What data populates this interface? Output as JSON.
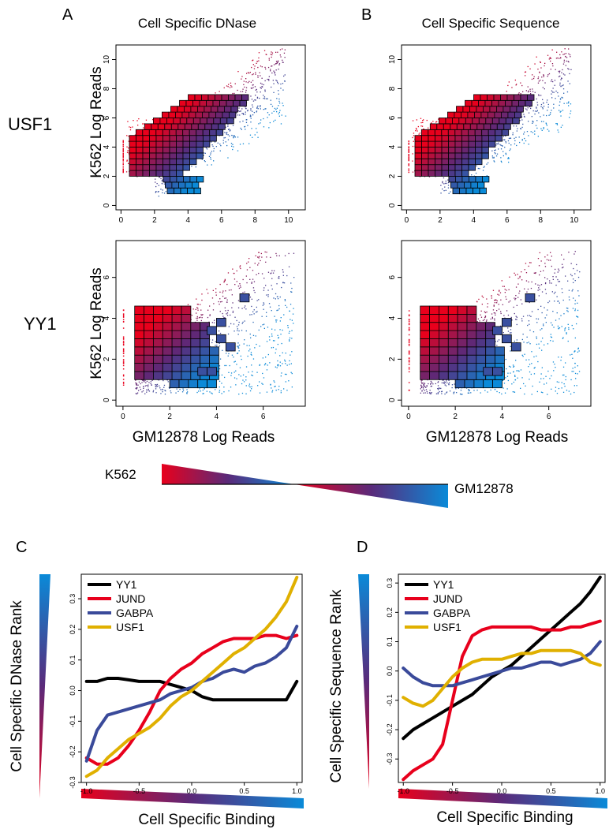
{
  "figure": {
    "panel_letters": [
      "A",
      "B",
      "C",
      "D"
    ],
    "column_titles": [
      "Cell Specific DNase",
      "Cell Specific Sequence"
    ],
    "row_labels": [
      "USF1",
      "YY1"
    ],
    "scatter_ylabel": "K562 Log Reads",
    "scatter_xlabel": "GM12878 Log Reads",
    "key_left": "K562",
    "key_right": "GM12878",
    "c_ylabel": "Cell Specific DNase Rank",
    "d_ylabel": "Cell Specific Sequence Rank",
    "cd_xlabel": "Cell Specific Binding"
  },
  "colors": {
    "k562": "#e8001c",
    "mid": "#5a2a7a",
    "gm12878": "#0a8ad8",
    "YY1": "#000000",
    "JUND": "#e8001c",
    "GABPA": "#3a4a9a",
    "USF1": "#e0b000"
  },
  "chart_data": [
    {
      "panel": "A",
      "row": "USF1",
      "type": "scatter",
      "x_ticks": [
        "0",
        "2",
        "4",
        "6",
        "8",
        "10"
      ],
      "y_ticks": [
        "0",
        "2",
        "4",
        "6",
        "8",
        "10"
      ],
      "xlim": [
        -0.3,
        11
      ],
      "ylim": [
        -0.3,
        11
      ],
      "xlabel": "",
      "ylabel": "K562 Log Reads"
    },
    {
      "panel": "B",
      "row": "USF1",
      "type": "scatter",
      "x_ticks": [
        "0",
        "2",
        "4",
        "6",
        "8",
        "10"
      ],
      "y_ticks": [
        "0",
        "2",
        "4",
        "6",
        "8",
        "10"
      ],
      "xlim": [
        -0.3,
        11
      ],
      "ylim": [
        -0.3,
        11
      ],
      "xlabel": "",
      "ylabel": ""
    },
    {
      "panel": "A",
      "row": "YY1",
      "type": "scatter",
      "x_ticks": [
        "0",
        "2",
        "4",
        "6"
      ],
      "y_ticks": [
        "0",
        "2",
        "4",
        "6"
      ],
      "xlim": [
        -0.3,
        7.8
      ],
      "ylim": [
        -0.3,
        7.8
      ],
      "xlabel": "GM12878 Log Reads",
      "ylabel": "K562 Log Reads"
    },
    {
      "panel": "B",
      "row": "YY1",
      "type": "scatter",
      "x_ticks": [
        "0",
        "2",
        "4",
        "6"
      ],
      "y_ticks": [
        "0",
        "2",
        "4",
        "6"
      ],
      "xlim": [
        -0.3,
        7.8
      ],
      "ylim": [
        -0.3,
        7.8
      ],
      "xlabel": "GM12878 Log Reads",
      "ylabel": ""
    },
    {
      "panel": "C",
      "type": "line",
      "xlim": [
        -1.05,
        1.05
      ],
      "ylim": [
        -0.3,
        0.38
      ],
      "x_ticks": [
        "-1.0",
        "-0.5",
        "0.0",
        "0.5",
        "1.0"
      ],
      "y_ticks": [
        "-0.3",
        "-0.2",
        "-0.1",
        "0.0",
        "0.1",
        "0.2",
        "0.3"
      ],
      "xlabel": "Cell Specific Binding",
      "ylabel": "Cell Specific DNase Rank",
      "x": [
        -1.0,
        -0.9,
        -0.8,
        -0.7,
        -0.6,
        -0.5,
        -0.4,
        -0.3,
        -0.2,
        -0.1,
        0.0,
        0.1,
        0.2,
        0.3,
        0.4,
        0.5,
        0.6,
        0.7,
        0.8,
        0.9,
        1.0
      ],
      "series": [
        {
          "name": "YY1",
          "values": [
            0.03,
            0.03,
            0.04,
            0.04,
            0.035,
            0.03,
            0.03,
            0.03,
            0.02,
            0.01,
            0.0,
            -0.02,
            -0.03,
            -0.03,
            -0.03,
            -0.03,
            -0.03,
            -0.03,
            -0.03,
            -0.03,
            0.03
          ]
        },
        {
          "name": "JUND",
          "values": [
            -0.22,
            -0.24,
            -0.24,
            -0.22,
            -0.18,
            -0.13,
            -0.07,
            0.0,
            0.04,
            0.07,
            0.09,
            0.12,
            0.14,
            0.16,
            0.17,
            0.17,
            0.17,
            0.18,
            0.18,
            0.17,
            0.18
          ]
        },
        {
          "name": "GABPA",
          "values": [
            -0.23,
            -0.13,
            -0.08,
            -0.07,
            -0.06,
            -0.05,
            -0.04,
            -0.03,
            -0.01,
            0.0,
            0.01,
            0.03,
            0.04,
            0.06,
            0.07,
            0.06,
            0.08,
            0.09,
            0.11,
            0.14,
            0.21
          ]
        },
        {
          "name": "USF1",
          "values": [
            -0.28,
            -0.26,
            -0.22,
            -0.19,
            -0.16,
            -0.14,
            -0.12,
            -0.09,
            -0.05,
            -0.02,
            0.0,
            0.03,
            0.06,
            0.09,
            0.12,
            0.14,
            0.17,
            0.2,
            0.24,
            0.29,
            0.37
          ]
        }
      ],
      "legend": "top-left"
    },
    {
      "panel": "D",
      "type": "line",
      "xlim": [
        -1.05,
        1.05
      ],
      "ylim": [
        -0.38,
        0.33
      ],
      "x_ticks": [
        "-1.0",
        "-0.5",
        "0.0",
        "0.5",
        "1.0"
      ],
      "y_ticks": [
        "-0.3",
        "-0.2",
        "-0.1",
        "0.0",
        "0.1",
        "0.2",
        "0.3"
      ],
      "xlabel": "Cell Specific Binding",
      "ylabel": "Cell Specific Sequence Rank",
      "x": [
        -1.0,
        -0.9,
        -0.8,
        -0.7,
        -0.6,
        -0.5,
        -0.4,
        -0.3,
        -0.2,
        -0.1,
        0.0,
        0.1,
        0.2,
        0.3,
        0.4,
        0.5,
        0.6,
        0.7,
        0.8,
        0.9,
        1.0
      ],
      "series": [
        {
          "name": "YY1",
          "values": [
            -0.23,
            -0.2,
            -0.18,
            -0.16,
            -0.14,
            -0.12,
            -0.1,
            -0.08,
            -0.05,
            -0.02,
            0.0,
            0.02,
            0.05,
            0.08,
            0.11,
            0.14,
            0.17,
            0.2,
            0.23,
            0.27,
            0.32
          ]
        },
        {
          "name": "JUND",
          "values": [
            -0.37,
            -0.34,
            -0.32,
            -0.3,
            -0.25,
            -0.1,
            0.05,
            0.12,
            0.14,
            0.15,
            0.15,
            0.15,
            0.15,
            0.15,
            0.14,
            0.14,
            0.14,
            0.15,
            0.15,
            0.16,
            0.17
          ]
        },
        {
          "name": "GABPA",
          "values": [
            0.01,
            -0.02,
            -0.04,
            -0.05,
            -0.05,
            -0.05,
            -0.04,
            -0.03,
            -0.02,
            -0.01,
            0.0,
            0.01,
            0.01,
            0.02,
            0.03,
            0.03,
            0.02,
            0.03,
            0.04,
            0.06,
            0.1
          ]
        },
        {
          "name": "USF1",
          "values": [
            -0.09,
            -0.11,
            -0.12,
            -0.1,
            -0.06,
            -0.02,
            0.01,
            0.03,
            0.04,
            0.04,
            0.04,
            0.05,
            0.06,
            0.06,
            0.07,
            0.07,
            0.07,
            0.07,
            0.06,
            0.03,
            0.02
          ]
        }
      ],
      "legend": "top-left"
    }
  ]
}
